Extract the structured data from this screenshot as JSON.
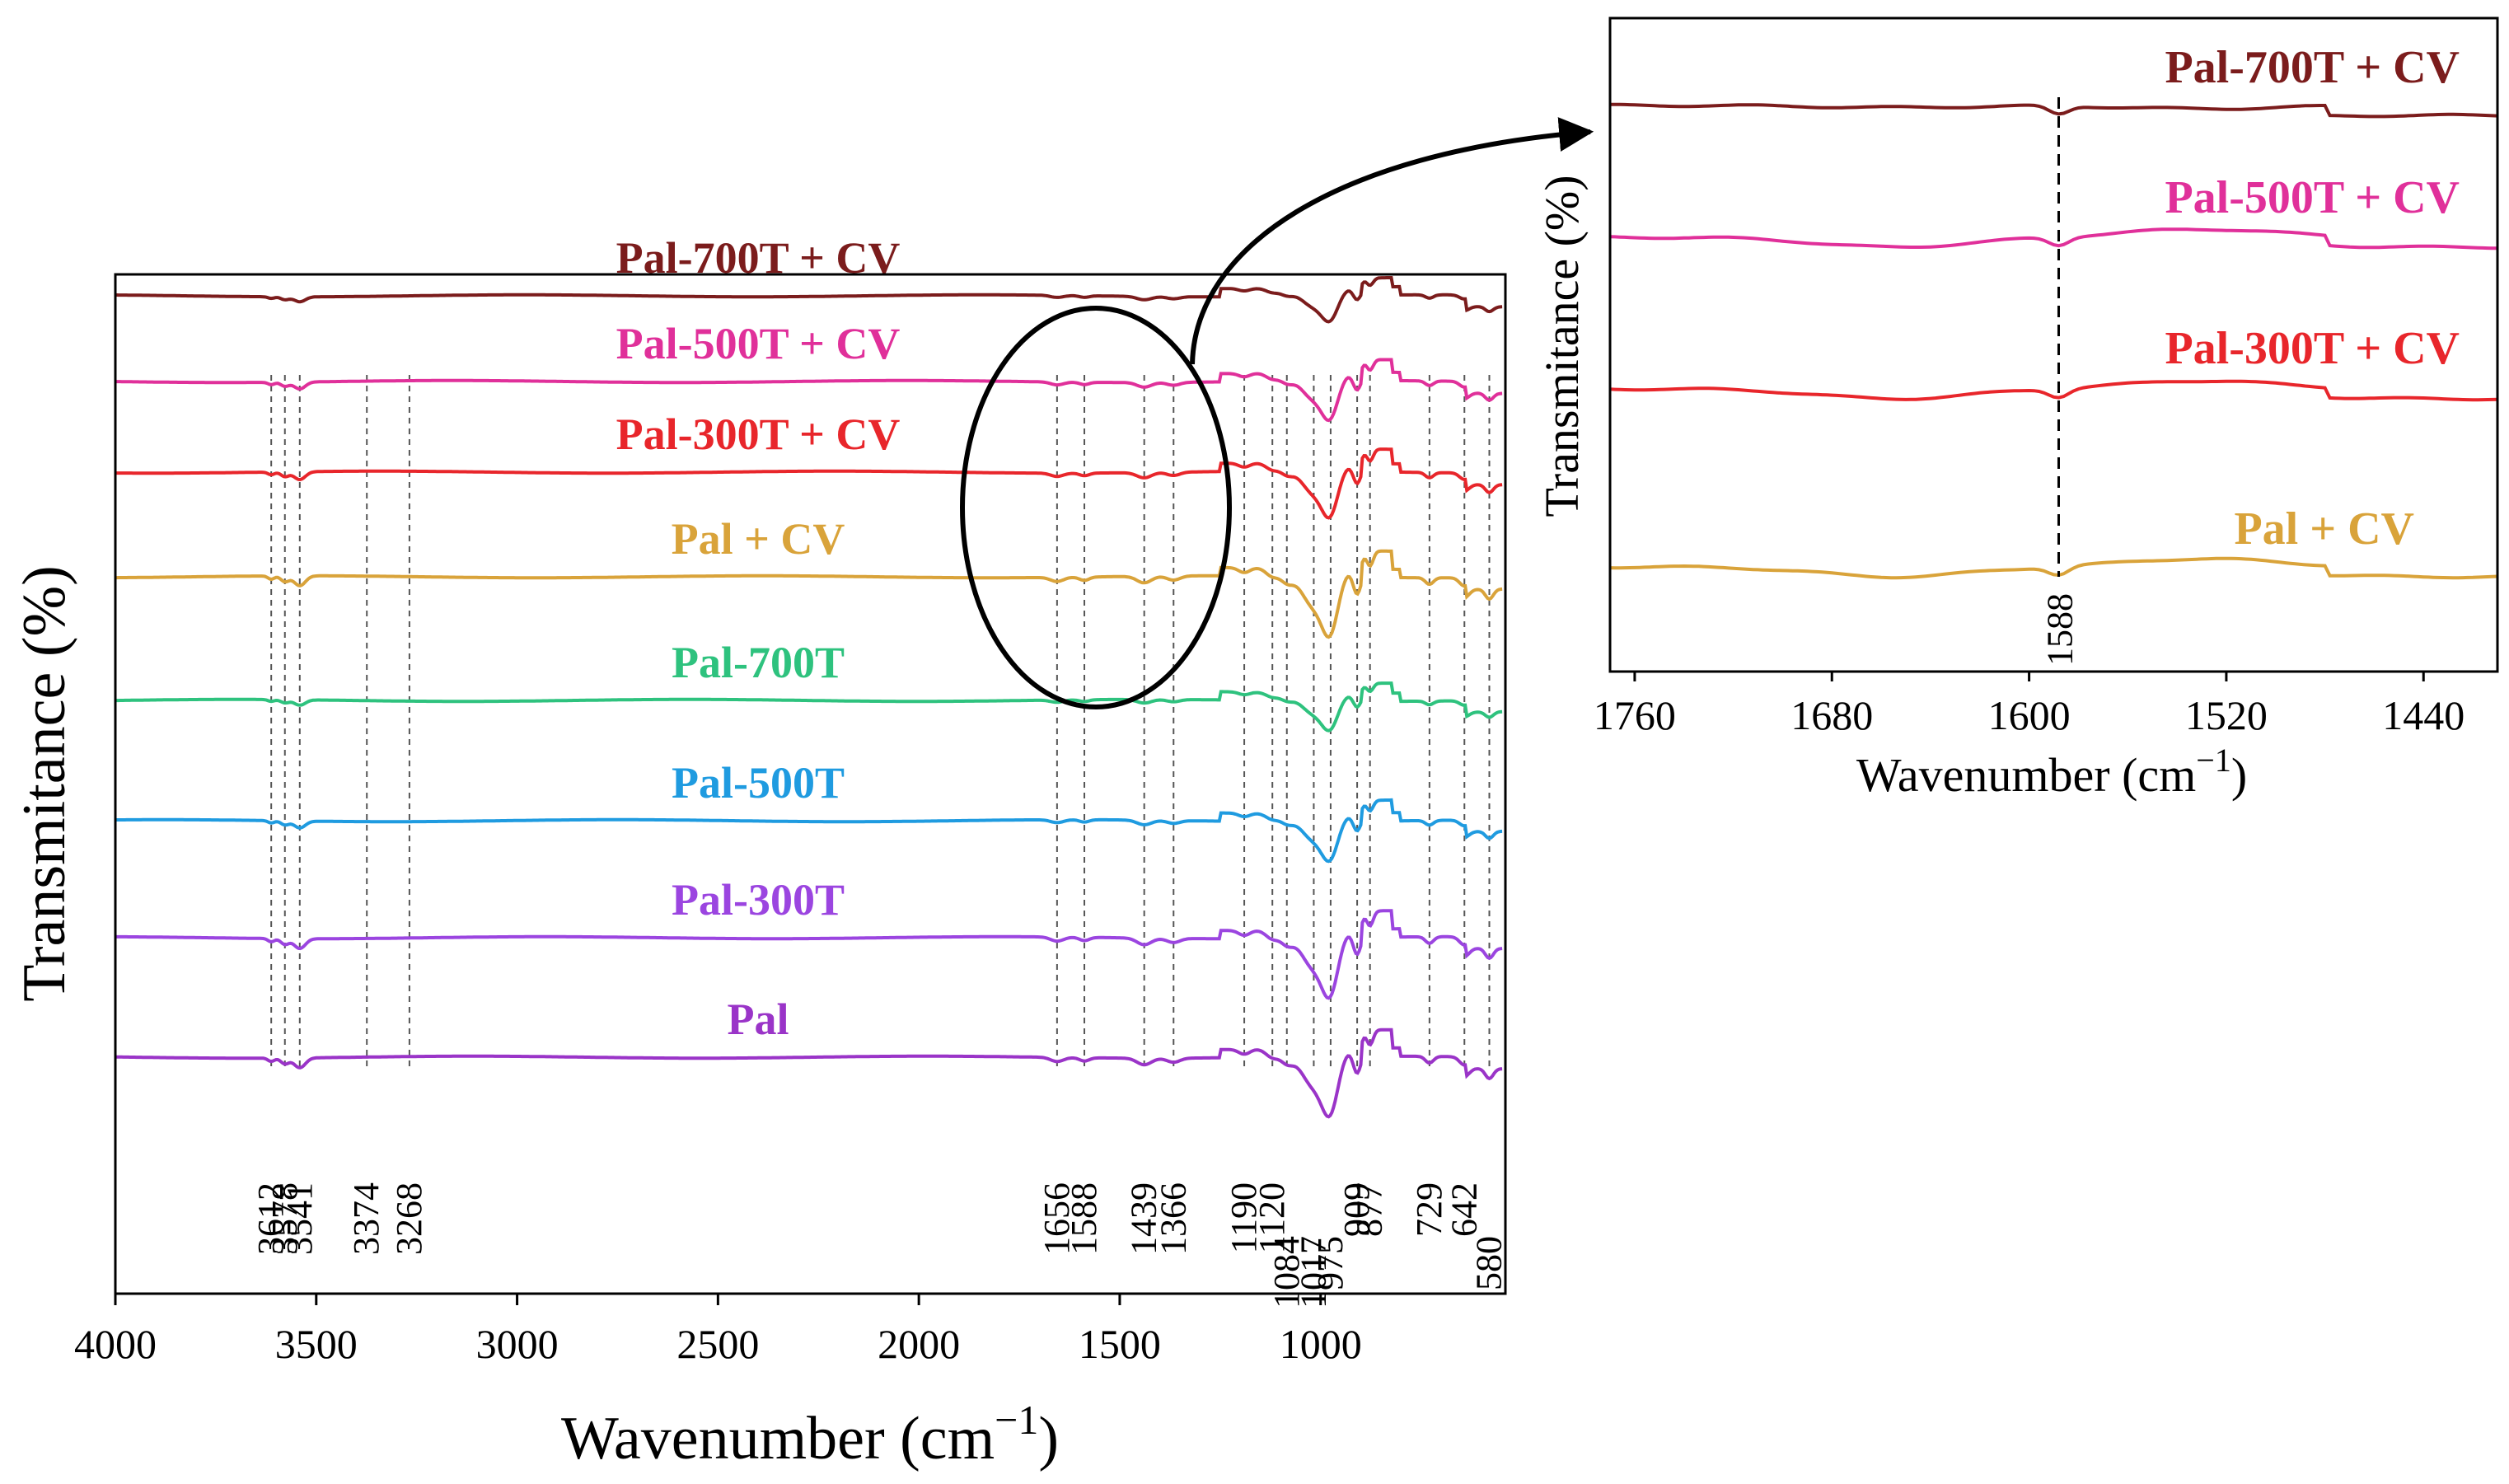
{
  "colors": {
    "Pal-700T + CV": "#7b1c1c",
    "Pal-500T + CV": "#e0309a",
    "Pal-300T + CV": "#e8262b",
    "Pal + CV": "#d9a33a",
    "Pal-700T": "#2ec27e",
    "Pal-500T": "#1f9be0",
    "Pal-300T": "#9b45e0",
    "Pal": "#9a34c8",
    "axis": "#000000",
    "guide": "#555555"
  },
  "chart_data": [
    {
      "id": "main",
      "type": "line",
      "xlabel": "Wavenumber (cm",
      "xlabel_sup": "−1",
      "xlabel_close": ")",
      "ylabel": "Transmitance (%)",
      "xlim": [
        4000,
        540
      ],
      "x_reversed": true,
      "xticks": [
        4000,
        3500,
        3000,
        2500,
        2000,
        1500,
        1000
      ],
      "xtick_labels": [
        "4000",
        "3500",
        "3000",
        "2500",
        "2000",
        "1500",
        "1000"
      ],
      "yticks_shown": false,
      "grid": false,
      "legend": "inline labels above each trace",
      "series": [
        {
          "name": "Pal-700T + CV",
          "offset": 7
        },
        {
          "name": "Pal-500T + CV",
          "offset": 6
        },
        {
          "name": "Pal-300T + CV",
          "offset": 5
        },
        {
          "name": "Pal + CV",
          "offset": 4
        },
        {
          "name": "Pal-700T",
          "offset": 3
        },
        {
          "name": "Pal-500T",
          "offset": 2
        },
        {
          "name": "Pal-300T",
          "offset": 1
        },
        {
          "name": "Pal",
          "offset": 0
        }
      ],
      "peak_markers": [
        {
          "x": 3612,
          "label": "3612"
        },
        {
          "x": 3578,
          "label": "3578"
        },
        {
          "x": 3541,
          "label": "3541"
        },
        {
          "x": 3374,
          "label": "3374"
        },
        {
          "x": 3268,
          "label": "3268"
        },
        {
          "x": 1656,
          "label": "1656"
        },
        {
          "x": 1588,
          "label": "1588"
        },
        {
          "x": 1439,
          "label": "1439"
        },
        {
          "x": 1366,
          "label": "1366"
        },
        {
          "x": 1190,
          "label": "1190"
        },
        {
          "x": 1120,
          "label": "1120"
        },
        {
          "x": 1084,
          "label": "1084"
        },
        {
          "x": 1017,
          "label": "1017"
        },
        {
          "x": 975,
          "label": "975"
        },
        {
          "x": 909,
          "label": "909"
        },
        {
          "x": 877,
          "label": "877"
        },
        {
          "x": 729,
          "label": "729"
        },
        {
          "x": 642,
          "label": "642"
        },
        {
          "x": 580,
          "label": "580"
        }
      ],
      "highlight_region": {
        "x_center": 1580,
        "shape": "ellipse",
        "points_to": "inset"
      }
    },
    {
      "id": "inset",
      "type": "line",
      "xlabel": "Wavenumber (cm",
      "xlabel_sup": "−1",
      "xlabel_close": ")",
      "ylabel": "Transmitance (%)",
      "xlim": [
        1770,
        1410
      ],
      "x_reversed": true,
      "xticks": [
        1760,
        1680,
        1600,
        1520,
        1440
      ],
      "xtick_labels": [
        "1760",
        "1680",
        "1600",
        "1520",
        "1440"
      ],
      "yticks_shown": false,
      "grid": false,
      "series": [
        {
          "name": "Pal-700T + CV",
          "offset": 3
        },
        {
          "name": "Pal-500T + CV",
          "offset": 2
        },
        {
          "name": "Pal-300T + CV",
          "offset": 1
        },
        {
          "name": "Pal + CV",
          "offset": 0
        }
      ],
      "peak_markers": [
        {
          "x": 1588,
          "label": "1588"
        }
      ]
    }
  ]
}
